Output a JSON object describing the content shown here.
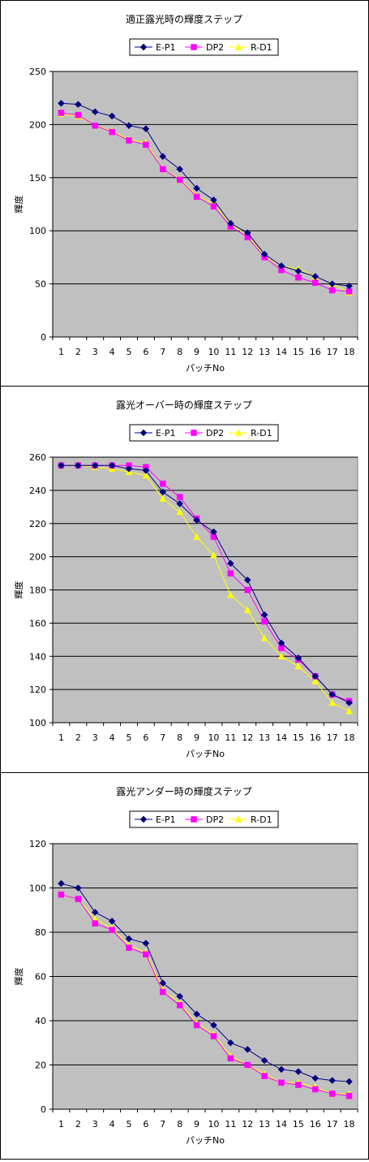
{
  "colors": {
    "plot_background": "#c0c0c0",
    "gridline": "#000000",
    "series_colors": [
      "#000080",
      "#ff00ff",
      "#ffff00"
    ]
  },
  "chart_data": [
    {
      "type": "line",
      "title": "適正露光時の輝度ステップ",
      "xlabel": "パッチNo",
      "ylabel": "輝度",
      "categories": [
        "1",
        "2",
        "3",
        "4",
        "5",
        "6",
        "7",
        "8",
        "9",
        "10",
        "11",
        "12",
        "13",
        "14",
        "15",
        "16",
        "17",
        "18"
      ],
      "ylim": [
        0,
        250
      ],
      "yticks": [
        0,
        50,
        100,
        150,
        200,
        250
      ],
      "grid": true,
      "legend": "top",
      "series": [
        {
          "name": "E-P1",
          "marker": "diamond",
          "values": [
            220,
            219,
            212,
            208,
            199,
            196,
            170,
            158,
            140,
            129,
            107,
            98,
            78,
            67,
            62,
            57,
            50,
            48
          ]
        },
        {
          "name": "DP2",
          "marker": "square",
          "values": [
            211,
            209,
            199,
            193,
            185,
            181,
            158,
            148,
            132,
            123,
            104,
            94,
            75,
            63,
            56,
            51,
            44,
            43
          ]
        },
        {
          "name": "R-D1",
          "marker": "triangle",
          "values": [
            210,
            208,
            199,
            194,
            186,
            183,
            158,
            149,
            133,
            126,
            106,
            96,
            76,
            67,
            64,
            57,
            50,
            42
          ]
        }
      ]
    },
    {
      "type": "line",
      "title": "露光オーバー時の輝度ステップ",
      "xlabel": "パッチNo",
      "ylabel": "輝度",
      "categories": [
        "1",
        "2",
        "3",
        "4",
        "5",
        "6",
        "7",
        "8",
        "9",
        "10",
        "11",
        "12",
        "13",
        "14",
        "15",
        "16",
        "17",
        "18"
      ],
      "ylim": [
        100,
        260
      ],
      "yticks": [
        100,
        120,
        140,
        160,
        180,
        200,
        220,
        240,
        260
      ],
      "grid": true,
      "legend": "top",
      "series": [
        {
          "name": "E-P1",
          "marker": "diamond",
          "values": [
            255,
            255,
            255,
            255,
            253,
            252,
            239,
            232,
            222,
            215,
            196,
            186,
            165,
            148,
            139,
            128,
            117,
            112
          ]
        },
        {
          "name": "DP2",
          "marker": "square",
          "values": [
            255,
            255,
            255,
            255,
            255,
            254,
            244,
            236,
            223,
            212,
            190,
            180,
            161,
            145,
            138,
            128,
            117,
            113
          ]
        },
        {
          "name": "R-D1",
          "marker": "triangle",
          "values": [
            255,
            255,
            254,
            253,
            251,
            249,
            235,
            227,
            212,
            201,
            177,
            168,
            151,
            140,
            134,
            125,
            112,
            107
          ]
        }
      ]
    },
    {
      "type": "line",
      "title": "露光アンダー時の輝度ステップ",
      "xlabel": "パッチNo",
      "ylabel": "輝度",
      "categories": [
        "1",
        "2",
        "3",
        "4",
        "5",
        "6",
        "7",
        "8",
        "9",
        "10",
        "11",
        "12",
        "13",
        "14",
        "15",
        "16",
        "17",
        "18"
      ],
      "ylim": [
        0,
        120
      ],
      "yticks": [
        0,
        20,
        40,
        60,
        80,
        100,
        120
      ],
      "grid": true,
      "legend": "top",
      "series": [
        {
          "name": "E-P1",
          "marker": "diamond",
          "values": [
            102,
            100,
            89,
            85,
            77,
            75,
            57,
            51,
            43,
            38,
            30,
            27,
            22,
            18,
            17,
            14,
            13,
            12.5
          ]
        },
        {
          "name": "DP2",
          "marker": "square",
          "values": [
            97,
            95,
            84,
            81,
            73,
            70,
            53,
            47,
            38,
            33,
            23,
            20,
            15,
            12,
            11,
            9,
            7,
            6
          ]
        },
        {
          "name": "R-D1",
          "marker": "triangle",
          "values": [
            97,
            95,
            86,
            82,
            74,
            71,
            54,
            48,
            39,
            34,
            24,
            20,
            16,
            12,
            12,
            10,
            7,
            7
          ]
        }
      ]
    }
  ]
}
